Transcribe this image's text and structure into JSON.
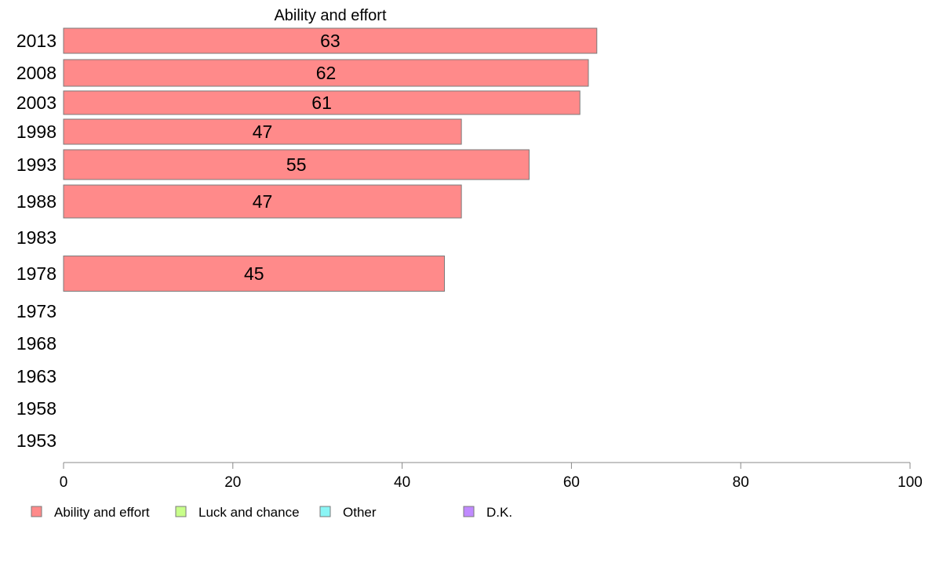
{
  "chart_data": {
    "type": "bar",
    "orientation": "horizontal",
    "title": "Ability and effort",
    "categories": [
      "2013",
      "2008",
      "2003",
      "1998",
      "1993",
      "1988",
      "1983",
      "1978",
      "1973",
      "1968",
      "1963",
      "1958",
      "1953"
    ],
    "series": [
      {
        "name": "Ability and effort",
        "color": "#ff8a8a",
        "values": [
          63,
          62,
          61,
          47,
          55,
          47,
          null,
          45,
          null,
          null,
          null,
          null,
          null
        ]
      }
    ],
    "xlim": [
      0,
      100
    ],
    "xticks": [
      0,
      20,
      40,
      60,
      80,
      100
    ],
    "grid": false,
    "legend": {
      "placement": "bottom-left",
      "items": [
        {
          "label": "Ability and effort",
          "color": "#ff8a8a"
        },
        {
          "label": "Luck and chance",
          "color": "#c8ff8a"
        },
        {
          "label": "Other",
          "color": "#8af5f5"
        },
        {
          "label": "D.K.",
          "color": "#c08aff"
        }
      ]
    }
  }
}
